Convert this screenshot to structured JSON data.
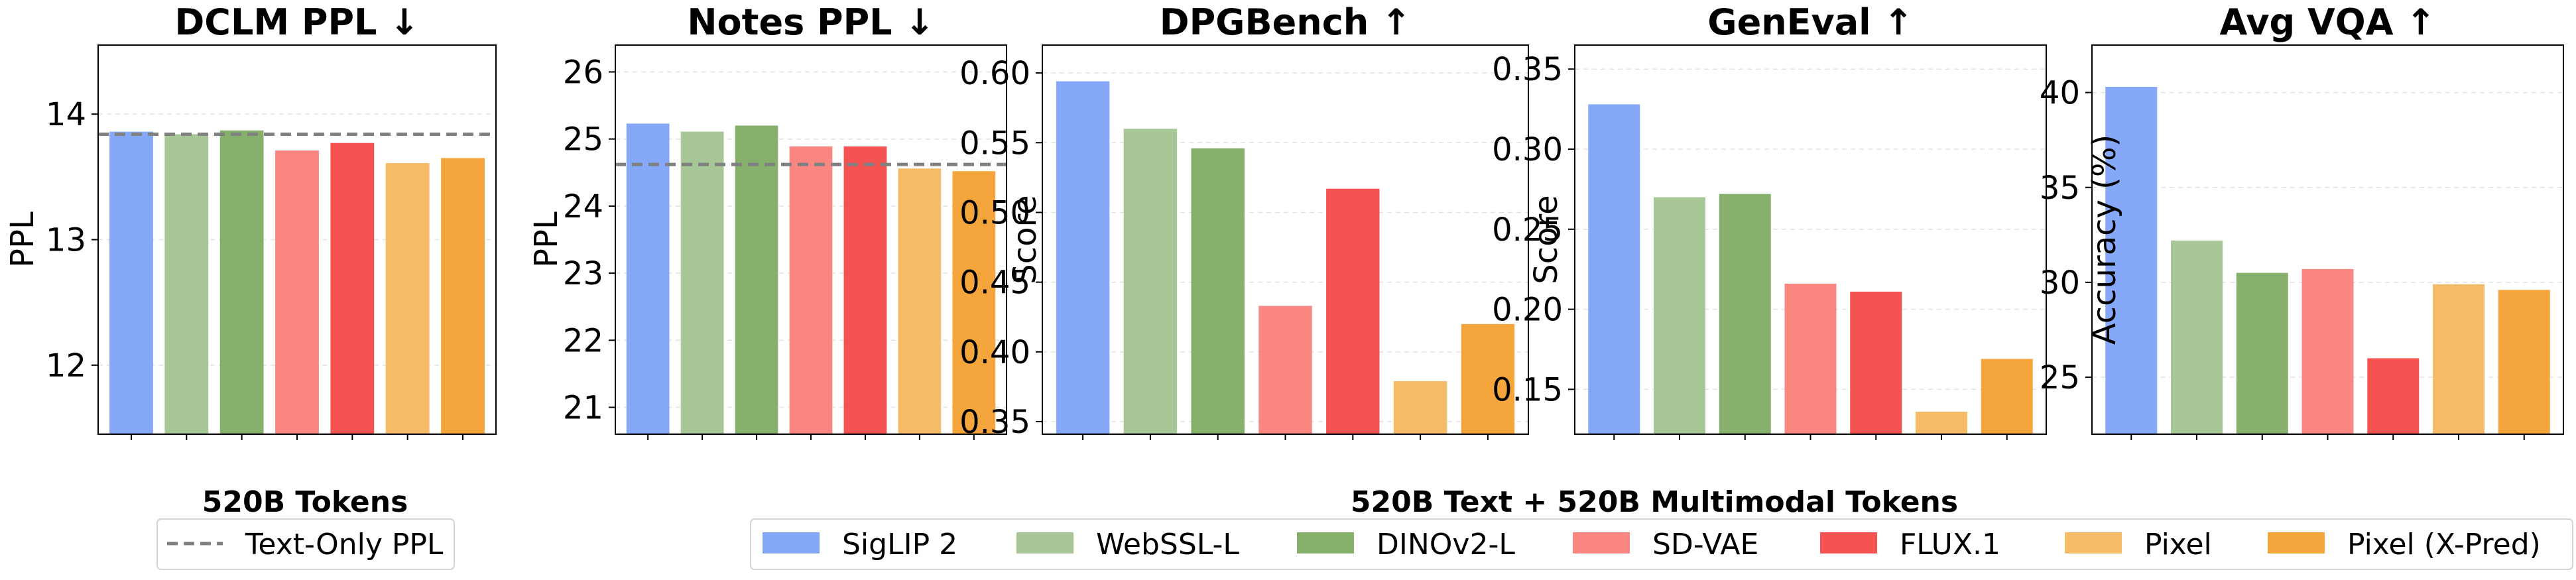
{
  "colors": {
    "SigLIP 2": "#86A8F8",
    "WebSSL-L": "#A8C796",
    "DINOv2-L": "#86B06C",
    "SD-VAE": "#FA8682",
    "FLUX.1": "#F45352",
    "Pixel": "#F6BB66",
    "Pixel (X-Pred)": "#F4A63C"
  },
  "chart_data": [
    {
      "type": "bar",
      "title": "DCLM PPL ↓",
      "xlabel": "",
      "ylabel": "PPL",
      "ylim": [
        11.45,
        14.55
      ],
      "yticks": [
        12,
        13,
        14
      ],
      "ytick_labels": [
        "12",
        "13",
        "14"
      ],
      "reference_line": {
        "value": 13.84,
        "style": "dashed",
        "label": "Text-Only PPL"
      },
      "categories": [
        "SigLIP 2",
        "WebSSL-L",
        "DINOv2-L",
        "SD-VAE",
        "FLUX.1",
        "Pixel",
        "Pixel (X-Pred)"
      ],
      "values": [
        13.86,
        13.84,
        13.87,
        13.71,
        13.77,
        13.61,
        13.65
      ],
      "grid": "horizontal dashed"
    },
    {
      "type": "bar",
      "title": "Notes PPL ↓",
      "xlabel": "",
      "ylabel": "PPL",
      "ylim": [
        20.6,
        26.4
      ],
      "yticks": [
        21,
        22,
        23,
        24,
        25,
        26
      ],
      "ytick_labels": [
        "21",
        "22",
        "23",
        "24",
        "25",
        "26"
      ],
      "reference_line": {
        "value": 24.62,
        "style": "dashed",
        "label": "Text-Only PPL"
      },
      "categories": [
        "SigLIP 2",
        "WebSSL-L",
        "DINOv2-L",
        "SD-VAE",
        "FLUX.1",
        "Pixel",
        "Pixel (X-Pred)"
      ],
      "values": [
        25.23,
        25.11,
        25.2,
        24.89,
        24.89,
        24.56,
        24.52
      ],
      "grid": "horizontal dashed"
    },
    {
      "type": "bar",
      "title": "DPGBench ↑",
      "xlabel": "",
      "ylabel": "Score",
      "ylim": [
        0.341,
        0.62
      ],
      "yticks": [
        0.35,
        0.4,
        0.45,
        0.5,
        0.55,
        0.6
      ],
      "ytick_labels": [
        "0.35",
        "0.40",
        "0.45",
        "0.50",
        "0.55",
        "0.60"
      ],
      "categories": [
        "SigLIP 2",
        "WebSSL-L",
        "DINOv2-L",
        "SD-VAE",
        "FLUX.1",
        "Pixel",
        "Pixel (X-Pred)"
      ],
      "values": [
        0.594,
        0.56,
        0.546,
        0.433,
        0.517,
        0.379,
        0.42
      ],
      "grid": "horizontal dashed"
    },
    {
      "type": "bar",
      "title": "GenEval ↑",
      "xlabel": "",
      "ylabel": "Score",
      "ylim": [
        0.122,
        0.365
      ],
      "yticks": [
        0.15,
        0.2,
        0.25,
        0.3,
        0.35
      ],
      "ytick_labels": [
        "0.15",
        "0.20",
        "0.25",
        "0.30",
        "0.35"
      ],
      "categories": [
        "SigLIP 2",
        "WebSSL-L",
        "DINOv2-L",
        "SD-VAE",
        "FLUX.1",
        "Pixel",
        "Pixel (X-Pred)"
      ],
      "values": [
        0.328,
        0.27,
        0.272,
        0.216,
        0.211,
        0.136,
        0.169
      ],
      "grid": "horizontal dashed"
    },
    {
      "type": "bar",
      "title": "Avg VQA ↑",
      "xlabel": "",
      "ylabel": "Accuracy (%)",
      "ylim": [
        22.0,
        42.5
      ],
      "yticks": [
        25,
        30,
        35,
        40
      ],
      "ytick_labels": [
        "25",
        "30",
        "35",
        "40"
      ],
      "categories": [
        "SigLIP 2",
        "WebSSL-L",
        "DINOv2-L",
        "SD-VAE",
        "FLUX.1",
        "Pixel",
        "Pixel (X-Pred)"
      ],
      "values": [
        40.3,
        32.2,
        30.5,
        30.7,
        26.0,
        29.9,
        29.6
      ],
      "grid": "horizontal dashed"
    }
  ],
  "legends": {
    "left": {
      "title": "520B Tokens",
      "entries": [
        {
          "label": "Text-Only PPL",
          "style": "dashed-line"
        }
      ]
    },
    "right": {
      "title": "520B Text + 520B Multimodal Tokens",
      "entries": [
        "SigLIP 2",
        "WebSSL-L",
        "DINOv2-L",
        "SD-VAE",
        "FLUX.1",
        "Pixel",
        "Pixel (X-Pred)"
      ]
    }
  }
}
